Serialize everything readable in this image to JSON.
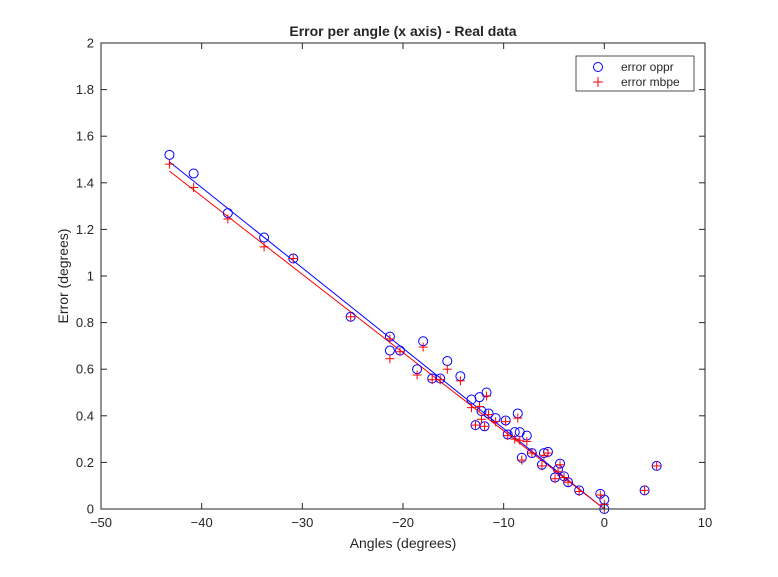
{
  "chart_data": {
    "type": "scatter",
    "title": "Error per angle (x axis) - Real data",
    "xlabel": "Angles (degrees)",
    "ylabel": "Error (degrees)",
    "xlim": [
      -50,
      10
    ],
    "ylim": [
      0,
      2
    ],
    "x_ticks": [
      -50,
      -40,
      -30,
      -20,
      -10,
      0,
      10
    ],
    "x_tick_labels": [
      "−50",
      "−40",
      "−30",
      "−20",
      "−10",
      "0",
      "10"
    ],
    "y_ticks": [
      0,
      0.2,
      0.4,
      0.6,
      0.8,
      1,
      1.2,
      1.4,
      1.6,
      1.8,
      2
    ],
    "y_tick_labels": [
      "0",
      "0.2",
      "0.4",
      "0.6",
      "0.8",
      "1",
      "1.2",
      "1.4",
      "1.6",
      "1.8",
      "2"
    ],
    "grid": false,
    "legend": {
      "placement": "top-right"
    },
    "series": [
      {
        "name": "error oppr",
        "marker": "circle",
        "color": "#0000ff",
        "points": [
          [
            -43.2,
            1.52
          ],
          [
            -40.8,
            1.44
          ],
          [
            -37.4,
            1.27
          ],
          [
            -33.8,
            1.165
          ],
          [
            -30.9,
            1.075
          ],
          [
            -25.2,
            0.825
          ],
          [
            -21.3,
            0.74
          ],
          [
            -21.3,
            0.68
          ],
          [
            -20.3,
            0.68
          ],
          [
            -18.6,
            0.6
          ],
          [
            -18.0,
            0.72
          ],
          [
            -17.1,
            0.56
          ],
          [
            -16.3,
            0.56
          ],
          [
            -15.6,
            0.635
          ],
          [
            -14.3,
            0.57
          ],
          [
            -13.2,
            0.47
          ],
          [
            -12.8,
            0.36
          ],
          [
            -12.4,
            0.48
          ],
          [
            -12.2,
            0.42
          ],
          [
            -11.9,
            0.355
          ],
          [
            -11.7,
            0.5
          ],
          [
            -11.5,
            0.41
          ],
          [
            -10.8,
            0.39
          ],
          [
            -9.8,
            0.38
          ],
          [
            -9.6,
            0.32
          ],
          [
            -8.9,
            0.33
          ],
          [
            -8.6,
            0.41
          ],
          [
            -8.4,
            0.33
          ],
          [
            -8.2,
            0.22
          ],
          [
            -7.7,
            0.315
          ],
          [
            -7.2,
            0.24
          ],
          [
            -6.2,
            0.19
          ],
          [
            -6.0,
            0.24
          ],
          [
            -5.6,
            0.245
          ],
          [
            -4.9,
            0.135
          ],
          [
            -4.6,
            0.17
          ],
          [
            -4.4,
            0.195
          ],
          [
            -4.0,
            0.14
          ],
          [
            -3.6,
            0.115
          ],
          [
            -2.5,
            0.08
          ],
          [
            -0.4,
            0.065
          ],
          [
            0.0,
            0.04
          ],
          [
            0.0,
            0.0
          ],
          [
            4.0,
            0.08
          ],
          [
            5.2,
            0.185
          ]
        ],
        "trend": {
          "x": [
            -43.2,
            0.0
          ],
          "y": [
            1.49,
            0.0
          ]
        }
      },
      {
        "name": "error mbpe",
        "marker": "plus",
        "color": "#ff0000",
        "points": [
          [
            -43.2,
            1.48
          ],
          [
            -40.8,
            1.38
          ],
          [
            -37.4,
            1.245
          ],
          [
            -33.8,
            1.125
          ],
          [
            -30.9,
            1.075
          ],
          [
            -25.2,
            0.825
          ],
          [
            -21.3,
            0.73
          ],
          [
            -21.3,
            0.645
          ],
          [
            -20.3,
            0.675
          ],
          [
            -18.6,
            0.575
          ],
          [
            -18.0,
            0.695
          ],
          [
            -17.1,
            0.555
          ],
          [
            -16.3,
            0.555
          ],
          [
            -15.6,
            0.6
          ],
          [
            -14.3,
            0.55
          ],
          [
            -13.2,
            0.435
          ],
          [
            -12.8,
            0.36
          ],
          [
            -12.4,
            0.44
          ],
          [
            -12.2,
            0.385
          ],
          [
            -11.9,
            0.355
          ],
          [
            -11.7,
            0.485
          ],
          [
            -11.5,
            0.405
          ],
          [
            -10.8,
            0.375
          ],
          [
            -9.8,
            0.375
          ],
          [
            -9.6,
            0.315
          ],
          [
            -8.9,
            0.3
          ],
          [
            -8.6,
            0.39
          ],
          [
            -8.4,
            0.295
          ],
          [
            -8.2,
            0.21
          ],
          [
            -7.7,
            0.29
          ],
          [
            -7.2,
            0.24
          ],
          [
            -6.2,
            0.185
          ],
          [
            -6.0,
            0.23
          ],
          [
            -5.6,
            0.24
          ],
          [
            -4.9,
            0.13
          ],
          [
            -4.6,
            0.16
          ],
          [
            -4.4,
            0.19
          ],
          [
            -4.0,
            0.135
          ],
          [
            -3.6,
            0.115
          ],
          [
            -2.5,
            0.075
          ],
          [
            -0.4,
            0.06
          ],
          [
            0.0,
            0.02
          ],
          [
            0.0,
            0.0
          ],
          [
            4.0,
            0.08
          ],
          [
            5.2,
            0.185
          ]
        ],
        "trend": {
          "x": [
            -43.2,
            0.0
          ],
          "y": [
            1.45,
            0.0
          ]
        }
      }
    ]
  }
}
